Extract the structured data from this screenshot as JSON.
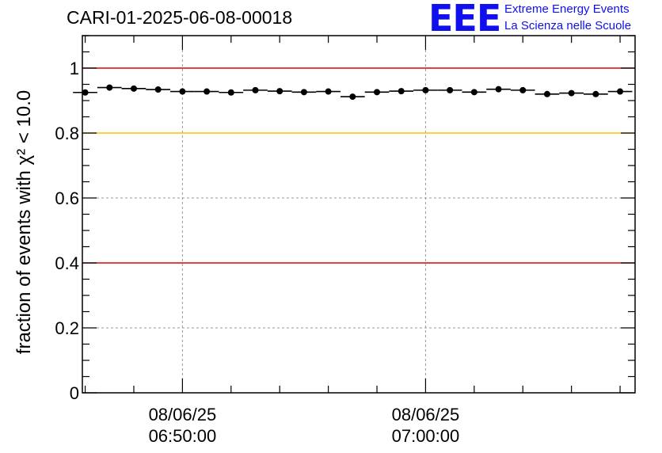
{
  "title": "CARI-01-2025-06-08-00018",
  "logo": {
    "letters": "EEE",
    "line1": "Extreme Energy Events",
    "line2": "La Scienza nelle Scuole",
    "color": "#1010ee"
  },
  "chart_data": {
    "type": "scatter",
    "title": "CARI-01-2025-06-08-00018",
    "ylabel": "fraction of events with χ² < 10.0",
    "xlabel": "",
    "ylim": [
      0,
      1.1
    ],
    "yticks": [
      "0",
      "0.2",
      "0.4",
      "0.6",
      "0.8",
      "1"
    ],
    "ytick_values": [
      0,
      0.2,
      0.4,
      0.6,
      0.8,
      1.0
    ],
    "xlim": [
      "08/06/25 06:45:53",
      "08/06/25 07:08:37"
    ],
    "xticks": [
      {
        "date": "08/06/25",
        "time": "06:50:00"
      },
      {
        "date": "08/06/25",
        "time": "07:00:00"
      }
    ],
    "grid": true,
    "reference_lines": [
      {
        "y": 1.0,
        "color": "#e00000"
      },
      {
        "y": 0.8,
        "color": "#ffc000"
      },
      {
        "y": 0.4,
        "color": "#e00000"
      }
    ],
    "series": [
      {
        "x": [
          "06:46:00",
          "06:47:00",
          "06:48:00",
          "06:49:00",
          "06:50:00",
          "06:51:00",
          "06:52:00",
          "06:53:00",
          "06:54:00",
          "06:55:00",
          "06:56:00",
          "06:57:00",
          "06:58:00",
          "06:59:00",
          "07:00:00",
          "07:01:00",
          "07:02:00",
          "07:03:00",
          "07:04:00",
          "07:05:00",
          "07:06:00",
          "07:07:00",
          "07:08:00"
        ],
        "y": [
          0.925,
          0.94,
          0.937,
          0.934,
          0.928,
          0.928,
          0.925,
          0.932,
          0.929,
          0.926,
          0.928,
          0.912,
          0.926,
          0.929,
          0.932,
          0.932,
          0.926,
          0.935,
          0.932,
          0.92,
          0.923,
          0.92,
          0.928
        ],
        "color": "#000000"
      }
    ]
  }
}
